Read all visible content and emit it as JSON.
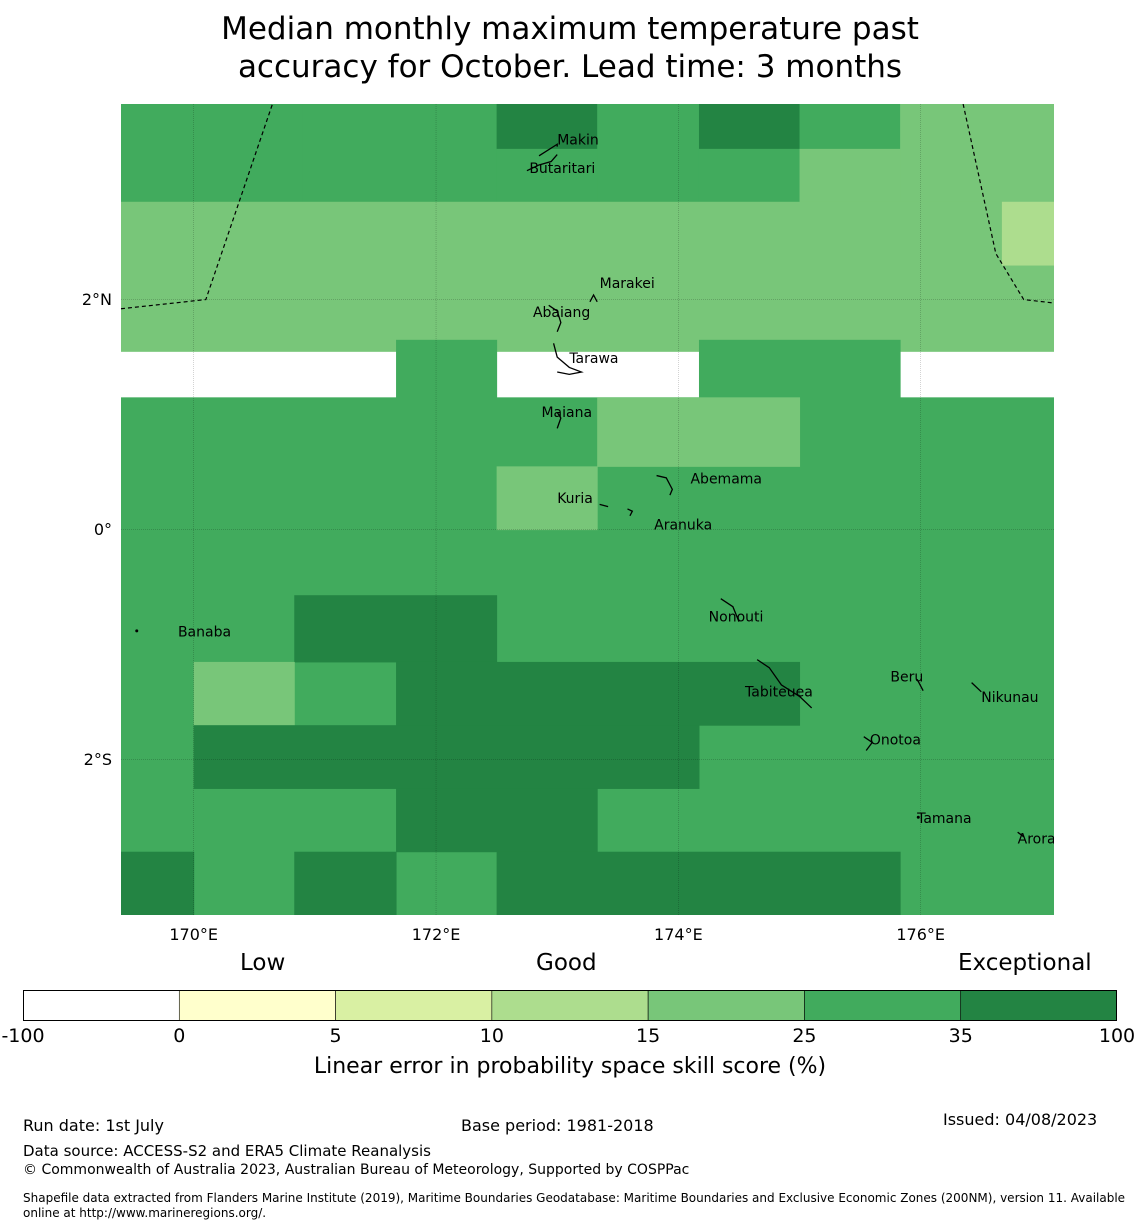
{
  "title_lines": [
    "Median monthly maximum temperature past",
    "accuracy for October. Lead time: 3 months"
  ],
  "map": {
    "lon_range": [
      169.4,
      177.1
    ],
    "lat_range": [
      -3.35,
      3.7
    ],
    "lon_ticks": [
      {
        "value": 170,
        "label": "170°E"
      },
      {
        "value": 172,
        "label": "172°E"
      },
      {
        "value": 174,
        "label": "174°E"
      },
      {
        "value": 176,
        "label": "176°E"
      }
    ],
    "lat_ticks": [
      {
        "value": 2,
        "label": "2°N"
      },
      {
        "value": 0,
        "label": "0°"
      },
      {
        "value": -2,
        "label": "2°S"
      }
    ],
    "skill_colors": {
      "lt0": "#ffffff",
      "c0": "#ffffcc",
      "c5": "#d9f0a3",
      "c10": "#addd8e",
      "c15": "#78c679",
      "c25": "#41ab5d",
      "c35": "#238443"
    },
    "grid_cells": [
      {
        "lon": [
          169.4,
          170.9
        ],
        "lat": [
          2.85,
          3.7
        ],
        "cat": "c25"
      },
      {
        "lon": [
          170.9,
          172.5
        ],
        "lat": [
          2.85,
          3.7
        ],
        "cat": "c25"
      },
      {
        "lon": [
          172.5,
          173.33
        ],
        "lat": [
          3.31,
          3.7
        ],
        "cat": "c35"
      },
      {
        "lon": [
          172.5,
          173.33
        ],
        "lat": [
          2.85,
          3.31
        ],
        "cat": "c25"
      },
      {
        "lon": [
          173.33,
          174.17
        ],
        "lat": [
          2.85,
          3.7
        ],
        "cat": "c25"
      },
      {
        "lon": [
          174.17,
          175.0
        ],
        "lat": [
          3.31,
          3.7
        ],
        "cat": "c35"
      },
      {
        "lon": [
          174.17,
          175.0
        ],
        "lat": [
          2.85,
          3.31
        ],
        "cat": "c25"
      },
      {
        "lon": [
          175.0,
          175.83
        ],
        "lat": [
          3.31,
          3.7
        ],
        "cat": "c25"
      },
      {
        "lon": [
          175.0,
          175.83
        ],
        "lat": [
          2.85,
          3.31
        ],
        "cat": "c15"
      },
      {
        "lon": [
          175.83,
          177.1
        ],
        "lat": [
          2.85,
          3.7
        ],
        "cat": "c15"
      },
      {
        "lon": [
          169.4,
          177.1
        ],
        "lat": [
          1.55,
          2.85
        ],
        "cat": "c15"
      },
      {
        "lon": [
          176.67,
          177.1
        ],
        "lat": [
          2.3,
          2.85
        ],
        "cat": "c10"
      },
      {
        "lon": [
          171.67,
          172.5
        ],
        "lat": [
          1.15,
          1.65
        ],
        "cat": "c25"
      },
      {
        "lon": [
          174.17,
          175.83
        ],
        "lat": [
          1.15,
          1.65
        ],
        "cat": "c25"
      },
      {
        "lon": [
          169.4,
          177.1
        ],
        "lat": [
          -3.35,
          1.15
        ],
        "cat": "c25"
      },
      {
        "lon": [
          173.33,
          175.0
        ],
        "lat": [
          0.55,
          1.15
        ],
        "cat": "c15"
      },
      {
        "lon": [
          172.5,
          173.33
        ],
        "lat": [
          0.0,
          0.55
        ],
        "cat": "c15"
      },
      {
        "lon": [
          170.83,
          172.5
        ],
        "lat": [
          -1.15,
          -0.57
        ],
        "cat": "c35"
      },
      {
        "lon": [
          171.67,
          175.0
        ],
        "lat": [
          -1.7,
          -1.15
        ],
        "cat": "c35"
      },
      {
        "lon": [
          170.0,
          170.83
        ],
        "lat": [
          -1.7,
          -1.15
        ],
        "cat": "c15"
      },
      {
        "lon": [
          170.0,
          174.17
        ],
        "lat": [
          -2.25,
          -1.7
        ],
        "cat": "c35"
      },
      {
        "lon": [
          171.67,
          173.33
        ],
        "lat": [
          -2.8,
          -2.25
        ],
        "cat": "c35"
      },
      {
        "lon": [
          169.4,
          170.0
        ],
        "lat": [
          -3.35,
          -2.8
        ],
        "cat": "c35"
      },
      {
        "lon": [
          170.83,
          171.67
        ],
        "lat": [
          -3.35,
          -2.8
        ],
        "cat": "c35"
      },
      {
        "lon": [
          172.5,
          175.83
        ],
        "lat": [
          -3.35,
          -2.8
        ],
        "cat": "c35"
      }
    ],
    "boundaries": [
      [
        [
          169.4,
          1.92
        ],
        [
          170.1,
          2.0
        ],
        [
          170.65,
          3.7
        ]
      ],
      [
        [
          176.35,
          3.7
        ],
        [
          176.62,
          2.4
        ],
        [
          176.85,
          2.0
        ],
        [
          177.1,
          1.97
        ]
      ]
    ],
    "islands": [
      {
        "name": "Makin",
        "lon": 173.0,
        "lat": 3.35,
        "shape": [
          [
            172.85,
            3.25
          ],
          [
            173.0,
            3.35
          ],
          [
            173.0,
            3.33
          ]
        ]
      },
      {
        "name": "Butaritari",
        "lon": 172.77,
        "lat": 3.1,
        "shape": [
          [
            172.75,
            3.12
          ],
          [
            172.85,
            3.17
          ],
          [
            172.95,
            3.2
          ],
          [
            173.0,
            3.26
          ]
        ]
      },
      {
        "name": "Marakei",
        "lon": 173.35,
        "lat": 2.1,
        "shape": [
          [
            173.27,
            1.98
          ],
          [
            173.3,
            2.04
          ],
          [
            173.33,
            1.98
          ]
        ]
      },
      {
        "name": "Abaiang",
        "lon": 172.8,
        "lat": 1.85,
        "shape": [
          [
            172.93,
            1.95
          ],
          [
            173.0,
            1.9
          ],
          [
            173.03,
            1.8
          ],
          [
            173.0,
            1.72
          ]
        ]
      },
      {
        "name": "Tarawa",
        "lon": 173.1,
        "lat": 1.45,
        "shape": [
          [
            172.97,
            1.62
          ],
          [
            173.0,
            1.5
          ],
          [
            173.1,
            1.41
          ],
          [
            173.2,
            1.37
          ],
          [
            173.1,
            1.35
          ],
          [
            173.0,
            1.37
          ]
        ]
      },
      {
        "name": "Maiana",
        "lon": 172.87,
        "lat": 0.98,
        "shape": [
          [
            173.0,
            1.02
          ],
          [
            173.03,
            0.97
          ],
          [
            173.0,
            0.88
          ]
        ]
      },
      {
        "name": "Abemama",
        "lon": 174.1,
        "lat": 0.4,
        "shape": [
          [
            173.82,
            0.47
          ],
          [
            173.9,
            0.45
          ],
          [
            173.95,
            0.35
          ],
          [
            173.93,
            0.3
          ]
        ]
      },
      {
        "name": "Kuria",
        "lon": 173.0,
        "lat": 0.23,
        "shape": [
          [
            173.35,
            0.22
          ],
          [
            173.42,
            0.2
          ]
        ]
      },
      {
        "name": "Aranuka",
        "lon": 173.8,
        "lat": 0.0,
        "shape": [
          [
            173.58,
            0.18
          ],
          [
            173.62,
            0.16
          ],
          [
            173.6,
            0.12
          ]
        ]
      },
      {
        "name": "Nonouti",
        "lon": 174.25,
        "lat": -0.8,
        "shape": [
          [
            174.35,
            -0.6
          ],
          [
            174.45,
            -0.67
          ],
          [
            174.5,
            -0.8
          ]
        ]
      },
      {
        "name": "Tabiteuea",
        "lon": 174.55,
        "lat": -1.45,
        "shape": [
          [
            174.65,
            -1.13
          ],
          [
            174.75,
            -1.2
          ],
          [
            174.85,
            -1.35
          ],
          [
            175.0,
            -1.45
          ],
          [
            175.1,
            -1.55
          ]
        ]
      },
      {
        "name": "Beru",
        "lon": 175.75,
        "lat": -1.32,
        "shape": [
          [
            175.97,
            -1.3
          ],
          [
            176.02,
            -1.4
          ]
        ]
      },
      {
        "name": "Nikunau",
        "lon": 176.5,
        "lat": -1.5,
        "shape": [
          [
            176.42,
            -1.33
          ],
          [
            176.5,
            -1.41
          ]
        ]
      },
      {
        "name": "Onotoa",
        "lon": 175.58,
        "lat": -1.87,
        "shape": [
          [
            175.53,
            -1.8
          ],
          [
            175.6,
            -1.85
          ],
          [
            175.55,
            -1.92
          ]
        ]
      },
      {
        "name": "Tamana",
        "lon": 175.97,
        "lat": -2.55,
        "shape": [
          [
            175.98,
            -2.5
          ]
        ]
      },
      {
        "name": "Arorae",
        "lon": 176.8,
        "lat": -2.73,
        "shape": [
          [
            176.8,
            -2.63
          ],
          [
            176.85,
            -2.67
          ]
        ]
      },
      {
        "name": "Banaba",
        "lon": 169.87,
        "lat": -0.93,
        "shape": [
          [
            169.53,
            -0.88
          ]
        ]
      }
    ]
  },
  "colorbar": {
    "headings": [
      "Low",
      "Good",
      "Exceptional"
    ],
    "ticks": [
      "-100",
      "0",
      "5",
      "10",
      "15",
      "25",
      "35",
      "100"
    ],
    "label": "Linear error in probability space skill score (%)"
  },
  "footer": {
    "run_date": "Run date: 1st July",
    "base_period": "Base period: 1981-2018",
    "issued": "Issued: 04/08/2023",
    "data_source": "Data source: ACCESS-S2 and ERA5 Climate Reanalysis",
    "copyright": "© Commonwealth of Australia 2023, Australian Bureau of Meteorology, Supported by COSPPac",
    "shapefile": "Shapefile data extracted from Flanders Marine Institute (2019), Maritime Boundaries Geodatabase: Maritime Boundaries and Exclusive Economic Zones (200NM), version 11. Available online at http://www.marineregions.org/."
  }
}
